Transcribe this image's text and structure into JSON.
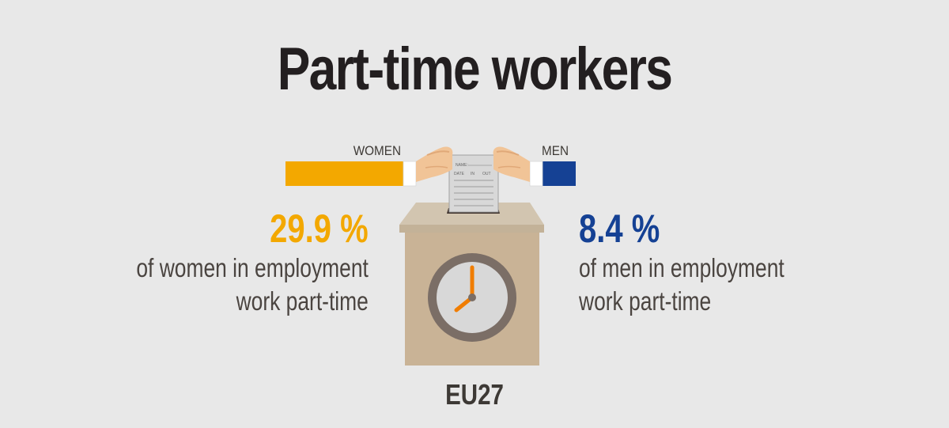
{
  "title": "Part-time workers",
  "region": "EU27",
  "women": {
    "bar_label": "WOMEN",
    "stat": "29.9 %",
    "value_percent": 29.9,
    "desc_line1": "of women in employment",
    "desc_line2": "work part-time",
    "color": "#f3a800"
  },
  "men": {
    "bar_label": "MEN",
    "stat": "8.4 %",
    "value_percent": 8.4,
    "desc_line1": "of men in employment",
    "desc_line2": "work part-time",
    "color": "#154194"
  },
  "timecard": {
    "name_label": "NAME:",
    "date_label": "DATE",
    "in_label": "IN",
    "out_label": "OUT"
  },
  "icons": [
    "hands-holding-card-icon",
    "time-card-icon",
    "ballot-box-icon",
    "clock-icon"
  ]
}
